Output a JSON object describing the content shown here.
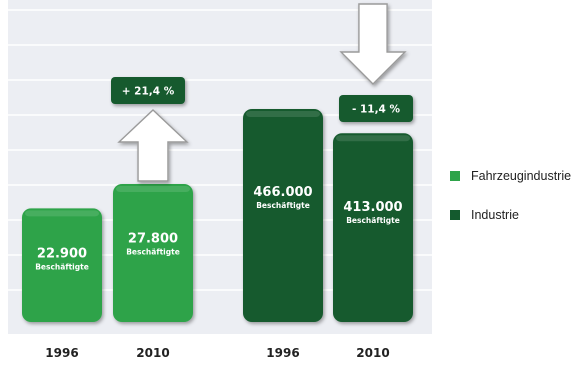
{
  "chart_data": {
    "type": "bar",
    "categories": [
      "1996",
      "2010",
      "1996",
      "2010"
    ],
    "series": [
      {
        "name": "Fahrzeugindustrie",
        "color": "#2ea34a",
        "points": [
          {
            "year": "1996",
            "value": 22900,
            "value_label": "22.900",
            "unit_label": "Beschäftigte"
          },
          {
            "year": "2010",
            "value": 27800,
            "value_label": "27.800",
            "unit_label": "Beschäftigte"
          }
        ],
        "change": {
          "label": "+ 21,4 %",
          "direction": "up"
        }
      },
      {
        "name": "Industrie",
        "color": "#145a2e",
        "points": [
          {
            "year": "1996",
            "value": 466000,
            "value_label": "466.000",
            "unit_label": "Beschäftigte"
          },
          {
            "year": "2010",
            "value": 413000,
            "value_label": "413.000",
            "unit_label": "Beschäftigte"
          }
        ],
        "change": {
          "label": "- 11,4 %",
          "direction": "down"
        }
      }
    ],
    "legend": {
      "position": "right",
      "entries": [
        {
          "label": "Fahrzeugindustrie",
          "color": "#2ea34a"
        },
        {
          "label": "Industrie",
          "color": "#145a2e"
        }
      ]
    },
    "grid": true,
    "background_color": "#eceef3",
    "gridline_color": "#ffffff"
  }
}
